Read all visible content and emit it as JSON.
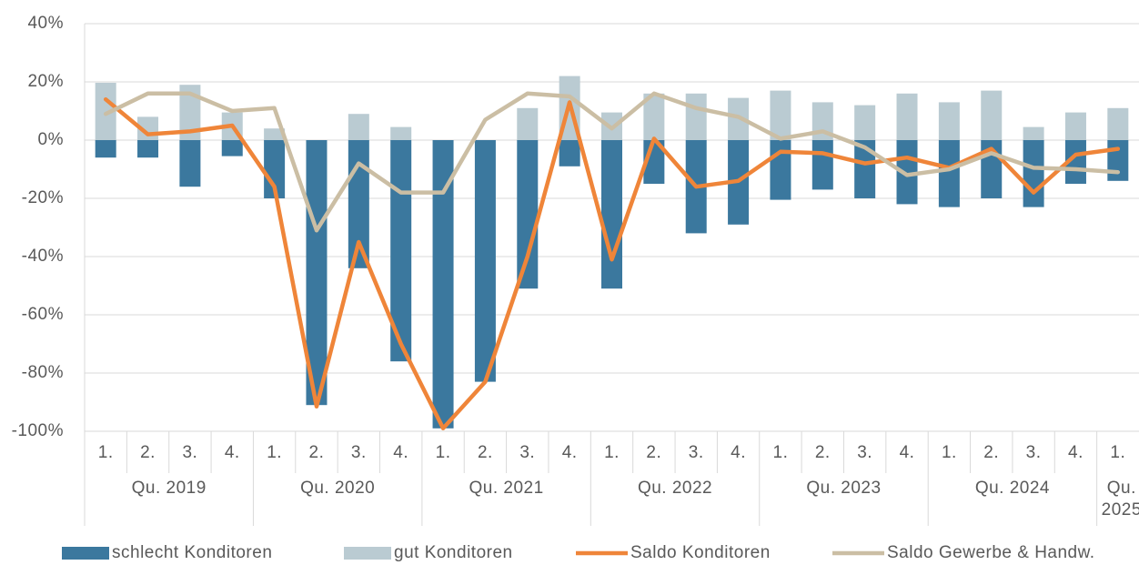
{
  "chart_data": {
    "type": "bar",
    "categories": [
      "1.",
      "2.",
      "3.",
      "4.",
      "1.",
      "2.",
      "3.",
      "4.",
      "1.",
      "2.",
      "3.",
      "4.",
      "1.",
      "2.",
      "3.",
      "4.",
      "1.",
      "2.",
      "3.",
      "4.",
      "1.",
      "2.",
      "3.",
      "4.",
      "1."
    ],
    "groups": [
      "Qu. 2019",
      "Qu. 2020",
      "Qu. 2021",
      "Qu. 2022",
      "Qu. 2023",
      "Qu. 2024",
      "Qu. 2025"
    ],
    "series": [
      {
        "name": "schlecht Konditoren",
        "type": "bar",
        "color": "#3b789e",
        "values": [
          -6,
          -6,
          -16,
          -5.5,
          -20,
          -91,
          -44,
          -76,
          -99,
          -83,
          -51,
          -9,
          -51,
          -15,
          -32,
          -29,
          -20.5,
          -17,
          -20,
          -22,
          -23,
          -20,
          -23,
          -15,
          -14
        ]
      },
      {
        "name": "gut Konditoren",
        "type": "bar",
        "color": "#bacbd2",
        "values": [
          19.7,
          8,
          19,
          9.5,
          4,
          0,
          9,
          4.5,
          0,
          0,
          11,
          22,
          9.5,
          16,
          16,
          14.5,
          17,
          13,
          12,
          16,
          13,
          17,
          4.5,
          9.5,
          11
        ]
      },
      {
        "name": "Saldo Konditoren",
        "type": "line",
        "color": "#ef8539",
        "values": [
          14,
          2,
          3,
          5,
          -16,
          -91.5,
          -35,
          -70,
          -99,
          -83,
          -40,
          13,
          -41,
          0.5,
          -16,
          -14,
          -4,
          -4.5,
          -8,
          -6,
          -9.5,
          -3,
          -18,
          -5,
          -3
        ]
      },
      {
        "name": "Saldo Gewerbe & Handw.",
        "type": "line",
        "color": "#cbbea4",
        "values": [
          9,
          16,
          16,
          10,
          11,
          -31,
          -8,
          -18,
          -18,
          7,
          16,
          15,
          4,
          16,
          11,
          8,
          0.5,
          3,
          -2.5,
          -12,
          -10,
          -4.5,
          -9.5,
          -10,
          -11
        ]
      }
    ],
    "ylim": [
      -100,
      40
    ],
    "yticks": [
      {
        "value": -100,
        "label": "-100%"
      },
      {
        "value": -80,
        "label": "-80%"
      },
      {
        "value": -60,
        "label": "-60%"
      },
      {
        "value": -40,
        "label": "-40%"
      },
      {
        "value": -20,
        "label": "-20%"
      },
      {
        "value": 0,
        "label": "0%"
      },
      {
        "value": 20,
        "label": "20%"
      },
      {
        "value": 40,
        "label": "40%"
      }
    ],
    "grid": true,
    "legend": "bottom"
  }
}
